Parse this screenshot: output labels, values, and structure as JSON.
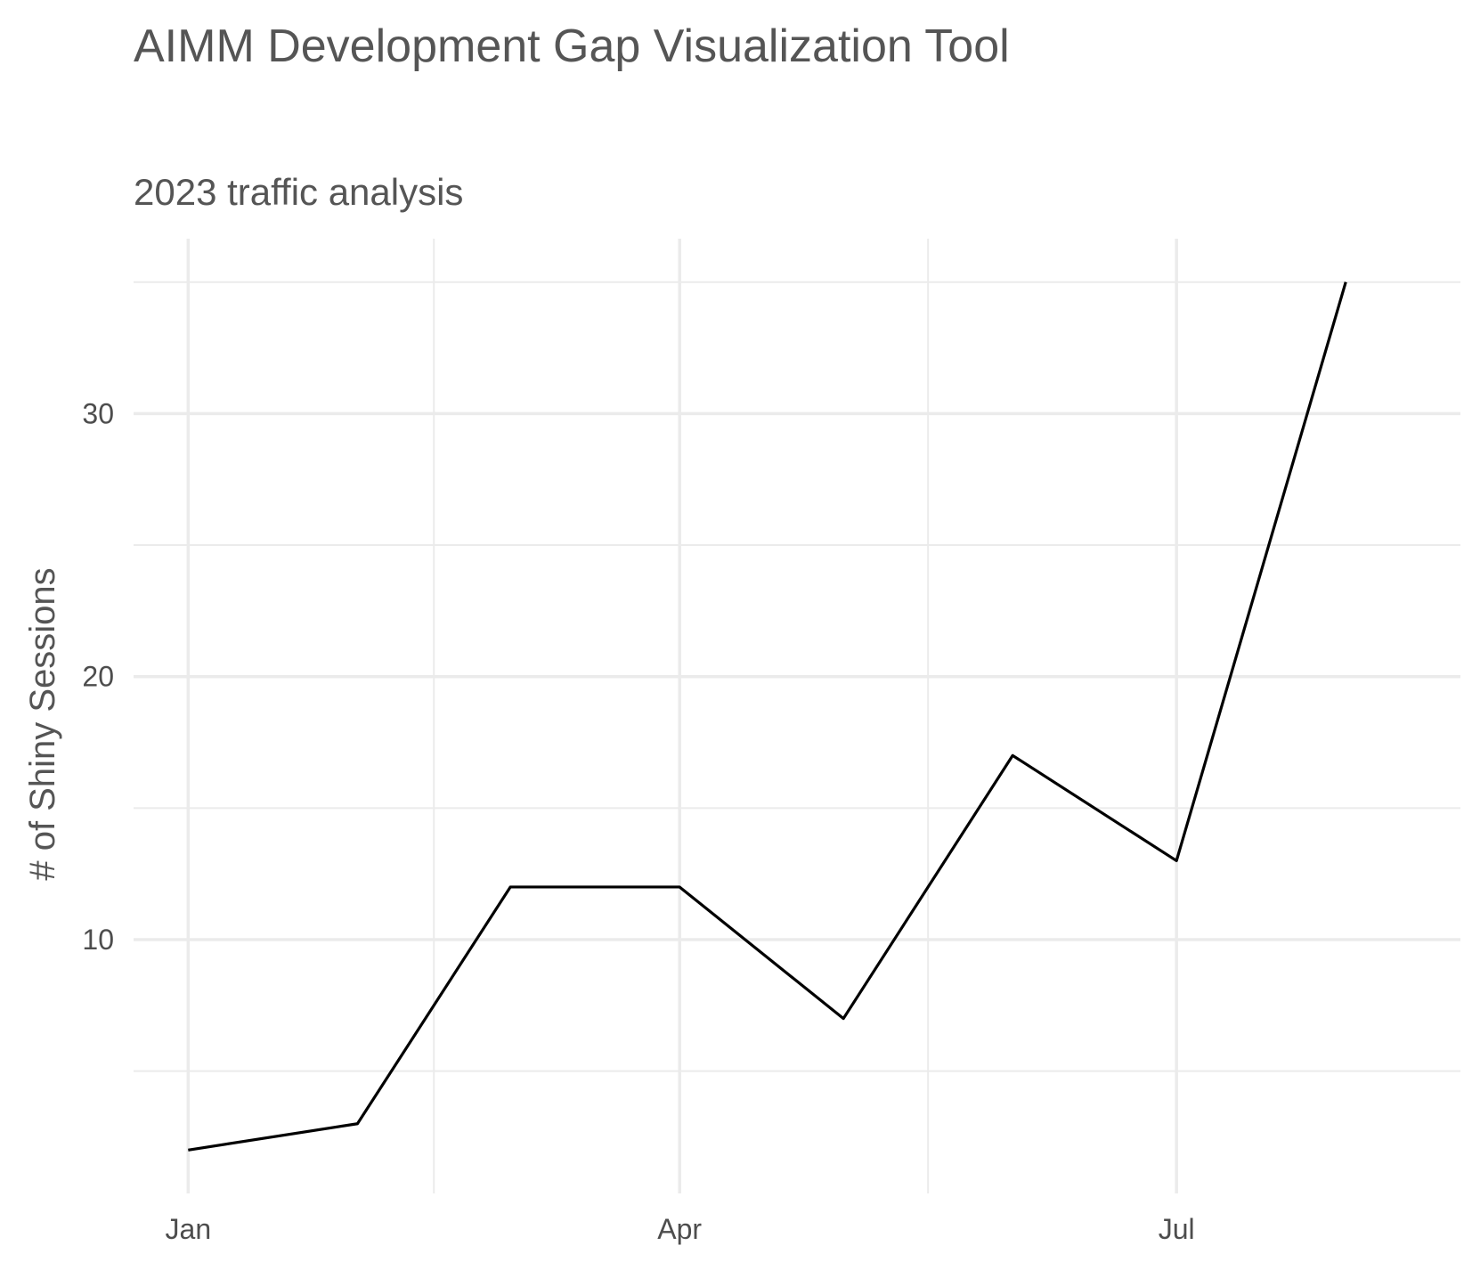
{
  "chart_data": {
    "type": "line",
    "title": "AIMM Development Gap Visualization Tool",
    "subtitle": "2023 traffic analysis",
    "xlabel": "",
    "ylabel": "# of Shiny Sessions",
    "x": [
      "2023-01-01",
      "2023-02-01",
      "2023-03-01",
      "2023-04-01",
      "2023-05-01",
      "2023-06-01",
      "2023-07-01",
      "2023-08-01"
    ],
    "series": [
      {
        "values": [
          2,
          3,
          12,
          12,
          7,
          17,
          13,
          35
        ],
        "color": "#000000"
      }
    ],
    "x_ticks": [
      {
        "date": "2023-01-01",
        "label": "Jan"
      },
      {
        "date": "2023-04-01",
        "label": "Apr"
      },
      {
        "date": "2023-07-01",
        "label": "Jul"
      }
    ],
    "y_ticks": [
      10,
      20,
      30
    ],
    "xlim": [
      "2022-12-22",
      "2023-08-22"
    ],
    "ylim": [
      0.35,
      36.65
    ],
    "grid": true,
    "legend": "none",
    "colors": {
      "background": "#ffffff",
      "grid": "#ebebeb",
      "line": "#000000",
      "text": "#4d4d4d"
    }
  }
}
